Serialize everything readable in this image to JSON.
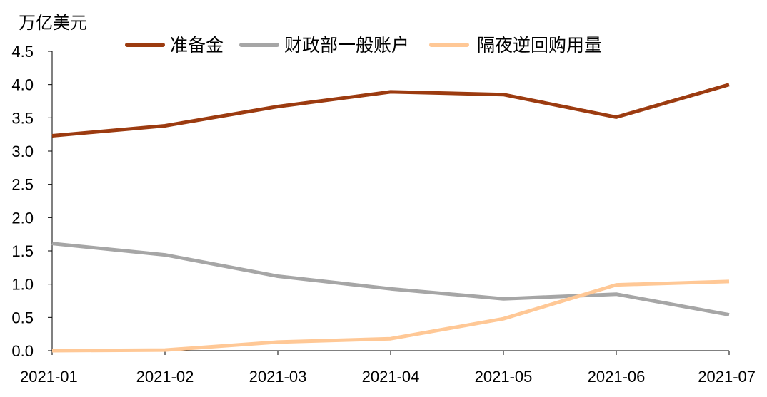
{
  "chart_data": {
    "type": "line",
    "ylabel": "万亿美元",
    "ylim": [
      0,
      4.5
    ],
    "yticks": [
      "0.0",
      "0.5",
      "1.0",
      "1.5",
      "2.0",
      "2.5",
      "3.0",
      "3.5",
      "4.0",
      "4.5"
    ],
    "categories": [
      "2021-01",
      "2021-02",
      "2021-03",
      "2021-04",
      "2021-05",
      "2021-06",
      "2021-07"
    ],
    "legend_position": "top",
    "grid": false,
    "series": [
      {
        "name": "准备金",
        "color": "#9c3b10",
        "values": [
          3.23,
          3.38,
          3.67,
          3.89,
          3.85,
          3.51,
          4.0
        ]
      },
      {
        "name": "财政部一般账户",
        "color": "#a6a6a6",
        "values": [
          1.61,
          1.44,
          1.12,
          0.93,
          0.78,
          0.85,
          0.54
        ]
      },
      {
        "name": "隔夜逆回购用量",
        "color": "#ffc896",
        "values": [
          0.0,
          0.01,
          0.13,
          0.18,
          0.48,
          0.99,
          1.04
        ]
      }
    ]
  }
}
